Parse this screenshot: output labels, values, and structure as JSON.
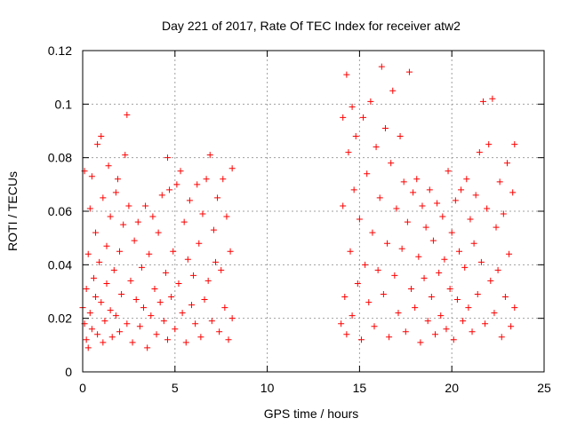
{
  "chart_data": {
    "type": "scatter",
    "title": "Day 221 of 2017, Rate Of TEC Index for receiver atw2",
    "xlabel": "GPS time / hours",
    "ylabel": "ROTI / TECUs",
    "xlim": [
      0,
      25
    ],
    "ylim": [
      0,
      0.12
    ],
    "x_ticks": [
      0,
      5,
      10,
      15,
      20,
      25
    ],
    "y_ticks": [
      0,
      0.02,
      0.04,
      0.06,
      0.08,
      0.1,
      0.12
    ],
    "x_tick_labels": [
      "0",
      "5",
      "10",
      "15",
      "20",
      "25"
    ],
    "y_tick_labels": [
      "0",
      "0.02",
      "0.04",
      "0.06",
      "0.08",
      "0.1",
      "0.12"
    ],
    "grid": true,
    "marker": "+",
    "color": "#ff0000",
    "series": [
      {
        "points": [
          [
            0.0,
            0.024
          ],
          [
            0.1,
            0.075
          ],
          [
            0.1,
            0.018
          ],
          [
            0.2,
            0.012
          ],
          [
            0.2,
            0.031
          ],
          [
            0.3,
            0.044
          ],
          [
            0.3,
            0.009
          ],
          [
            0.4,
            0.061
          ],
          [
            0.4,
            0.022
          ],
          [
            0.5,
            0.073
          ],
          [
            0.5,
            0.016
          ],
          [
            0.6,
            0.035
          ],
          [
            0.7,
            0.028
          ],
          [
            0.7,
            0.052
          ],
          [
            0.8,
            0.085
          ],
          [
            0.8,
            0.014
          ],
          [
            0.9,
            0.041
          ],
          [
            1.0,
            0.088
          ],
          [
            1.0,
            0.026
          ],
          [
            1.1,
            0.065
          ],
          [
            1.1,
            0.011
          ],
          [
            1.2,
            0.019
          ],
          [
            1.3,
            0.047
          ],
          [
            1.3,
            0.033
          ],
          [
            1.4,
            0.077
          ],
          [
            1.5,
            0.023
          ],
          [
            1.5,
            0.058
          ],
          [
            1.6,
            0.013
          ],
          [
            1.7,
            0.038
          ],
          [
            1.8,
            0.067
          ],
          [
            1.8,
            0.021
          ],
          [
            1.9,
            0.072
          ],
          [
            2.0,
            0.015
          ],
          [
            2.0,
            0.045
          ],
          [
            2.1,
            0.029
          ],
          [
            2.2,
            0.055
          ],
          [
            2.3,
            0.081
          ],
          [
            2.4,
            0.096
          ],
          [
            2.4,
            0.018
          ],
          [
            2.5,
            0.062
          ],
          [
            2.6,
            0.034
          ],
          [
            2.7,
            0.011
          ],
          [
            2.8,
            0.049
          ],
          [
            2.9,
            0.027
          ],
          [
            3.0,
            0.056
          ],
          [
            3.1,
            0.017
          ],
          [
            3.2,
            0.039
          ],
          [
            3.3,
            0.024
          ],
          [
            3.4,
            0.062
          ],
          [
            3.5,
            0.009
          ],
          [
            3.6,
            0.044
          ],
          [
            3.7,
            0.021
          ],
          [
            3.8,
            0.058
          ],
          [
            3.9,
            0.031
          ],
          [
            4.0,
            0.014
          ],
          [
            4.1,
            0.052
          ],
          [
            4.2,
            0.026
          ],
          [
            4.3,
            0.066
          ],
          [
            4.4,
            0.019
          ],
          [
            4.5,
            0.037
          ],
          [
            4.6,
            0.08
          ],
          [
            4.6,
            0.012
          ],
          [
            4.7,
            0.068
          ],
          [
            4.8,
            0.028
          ],
          [
            4.9,
            0.045
          ],
          [
            5.0,
            0.016
          ],
          [
            5.1,
            0.07
          ],
          [
            5.2,
            0.033
          ],
          [
            5.3,
            0.075
          ],
          [
            5.4,
            0.022
          ],
          [
            5.5,
            0.056
          ],
          [
            5.6,
            0.011
          ],
          [
            5.7,
            0.042
          ],
          [
            5.8,
            0.064
          ],
          [
            5.9,
            0.025
          ],
          [
            6.0,
            0.036
          ],
          [
            6.1,
            0.018
          ],
          [
            6.2,
            0.07
          ],
          [
            6.3,
            0.048
          ],
          [
            6.4,
            0.013
          ],
          [
            6.5,
            0.059
          ],
          [
            6.6,
            0.027
          ],
          [
            6.7,
            0.072
          ],
          [
            6.8,
            0.034
          ],
          [
            6.9,
            0.081
          ],
          [
            7.0,
            0.019
          ],
          [
            7.1,
            0.053
          ],
          [
            7.2,
            0.041
          ],
          [
            7.3,
            0.065
          ],
          [
            7.4,
            0.015
          ],
          [
            7.5,
            0.038
          ],
          [
            7.6,
            0.072
          ],
          [
            7.7,
            0.024
          ],
          [
            7.8,
            0.058
          ],
          [
            7.9,
            0.012
          ],
          [
            8.0,
            0.045
          ],
          [
            8.1,
            0.076
          ],
          [
            8.1,
            0.02
          ],
          [
            14.0,
            0.018
          ],
          [
            14.1,
            0.062
          ],
          [
            14.1,
            0.095
          ],
          [
            14.2,
            0.028
          ],
          [
            14.3,
            0.111
          ],
          [
            14.3,
            0.014
          ],
          [
            14.4,
            0.082
          ],
          [
            14.5,
            0.045
          ],
          [
            14.6,
            0.099
          ],
          [
            14.6,
            0.021
          ],
          [
            14.7,
            0.068
          ],
          [
            14.8,
            0.088
          ],
          [
            14.9,
            0.033
          ],
          [
            15.0,
            0.057
          ],
          [
            15.1,
            0.012
          ],
          [
            15.2,
            0.095
          ],
          [
            15.3,
            0.04
          ],
          [
            15.4,
            0.074
          ],
          [
            15.5,
            0.026
          ],
          [
            15.6,
            0.101
          ],
          [
            15.7,
            0.052
          ],
          [
            15.8,
            0.017
          ],
          [
            15.9,
            0.084
          ],
          [
            16.0,
            0.038
          ],
          [
            16.1,
            0.065
          ],
          [
            16.2,
            0.114
          ],
          [
            16.3,
            0.029
          ],
          [
            16.4,
            0.091
          ],
          [
            16.5,
            0.048
          ],
          [
            16.6,
            0.013
          ],
          [
            16.7,
            0.078
          ],
          [
            16.8,
            0.105
          ],
          [
            16.9,
            0.036
          ],
          [
            17.0,
            0.061
          ],
          [
            17.1,
            0.022
          ],
          [
            17.2,
            0.088
          ],
          [
            17.3,
            0.046
          ],
          [
            17.4,
            0.071
          ],
          [
            17.5,
            0.015
          ],
          [
            17.6,
            0.056
          ],
          [
            17.7,
            0.112
          ],
          [
            17.8,
            0.031
          ],
          [
            17.9,
            0.067
          ],
          [
            18.0,
            0.024
          ],
          [
            18.1,
            0.072
          ],
          [
            18.2,
            0.043
          ],
          [
            18.3,
            0.011
          ],
          [
            18.4,
            0.062
          ],
          [
            18.5,
            0.035
          ],
          [
            18.6,
            0.054
          ],
          [
            18.7,
            0.019
          ],
          [
            18.8,
            0.068
          ],
          [
            18.9,
            0.028
          ],
          [
            19.0,
            0.049
          ],
          [
            19.1,
            0.014
          ],
          [
            19.2,
            0.063
          ],
          [
            19.3,
            0.037
          ],
          [
            19.4,
            0.021
          ],
          [
            19.5,
            0.058
          ],
          [
            19.6,
            0.042
          ],
          [
            19.7,
            0.016
          ],
          [
            19.8,
            0.075
          ],
          [
            19.9,
            0.031
          ],
          [
            20.0,
            0.052
          ],
          [
            20.1,
            0.012
          ],
          [
            20.2,
            0.064
          ],
          [
            20.3,
            0.027
          ],
          [
            20.4,
            0.045
          ],
          [
            20.5,
            0.068
          ],
          [
            20.6,
            0.019
          ],
          [
            20.7,
            0.039
          ],
          [
            20.8,
            0.072
          ],
          [
            20.9,
            0.024
          ],
          [
            21.0,
            0.057
          ],
          [
            21.1,
            0.015
          ],
          [
            21.2,
            0.048
          ],
          [
            21.3,
            0.066
          ],
          [
            21.4,
            0.029
          ],
          [
            21.5,
            0.082
          ],
          [
            21.6,
            0.041
          ],
          [
            21.7,
            0.101
          ],
          [
            21.8,
            0.018
          ],
          [
            21.9,
            0.061
          ],
          [
            22.0,
            0.085
          ],
          [
            22.1,
            0.034
          ],
          [
            22.2,
            0.102
          ],
          [
            22.3,
            0.022
          ],
          [
            22.4,
            0.054
          ],
          [
            22.5,
            0.038
          ],
          [
            22.6,
            0.071
          ],
          [
            22.7,
            0.013
          ],
          [
            22.8,
            0.059
          ],
          [
            22.9,
            0.028
          ],
          [
            23.0,
            0.078
          ],
          [
            23.1,
            0.044
          ],
          [
            23.2,
            0.017
          ],
          [
            23.3,
            0.067
          ],
          [
            23.4,
            0.085
          ],
          [
            23.4,
            0.024
          ]
        ]
      }
    ]
  }
}
